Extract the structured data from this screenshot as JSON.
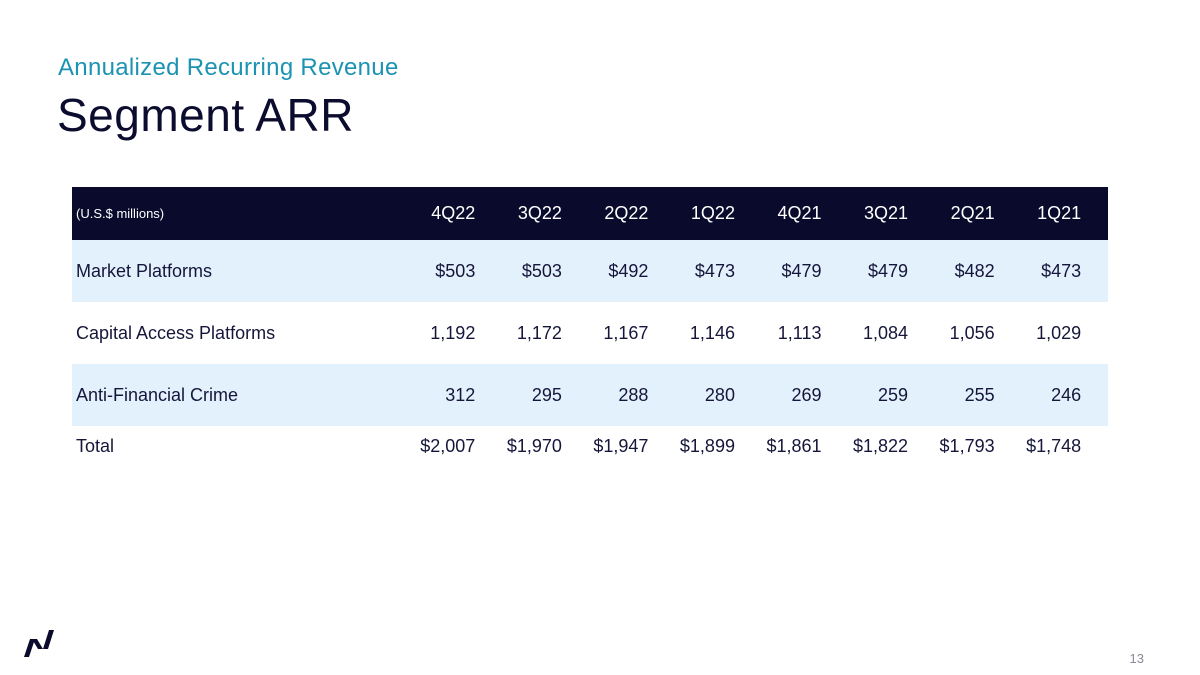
{
  "slide": {
    "subtitle": "Annualized Recurring Revenue",
    "title": "Segment ARR",
    "page_number": "13"
  },
  "table": {
    "units_label": "(U.S.$ millions)",
    "columns": [
      "4Q22",
      "3Q22",
      "2Q22",
      "1Q22",
      "4Q21",
      "3Q21",
      "2Q21",
      "1Q21"
    ],
    "rows": [
      {
        "label": "Market Platforms",
        "values": [
          "$503",
          "$503",
          "$492",
          "$473",
          "$479",
          "$479",
          "$482",
          "$473"
        ]
      },
      {
        "label": "Capital Access Platforms",
        "values": [
          "1,192",
          "1,172",
          "1,167",
          "1,146",
          "1,113",
          "1,084",
          "1,056",
          "1,029"
        ]
      },
      {
        "label": "Anti-Financial Crime",
        "values": [
          "312",
          "295",
          "288",
          "280",
          "269",
          "259",
          "255",
          "246"
        ]
      },
      {
        "label": "Total",
        "values": [
          "$2,007",
          "$1,970",
          "$1,947",
          "$1,899",
          "$1,861",
          "$1,822",
          "$1,793",
          "$1,748"
        ]
      }
    ]
  },
  "colors": {
    "accent": "#1c93b3",
    "header_bg": "#0a0b2c",
    "row_shade": "#e3f1fd"
  },
  "logo": {
    "icon": "nasdaq-logo-icon"
  }
}
